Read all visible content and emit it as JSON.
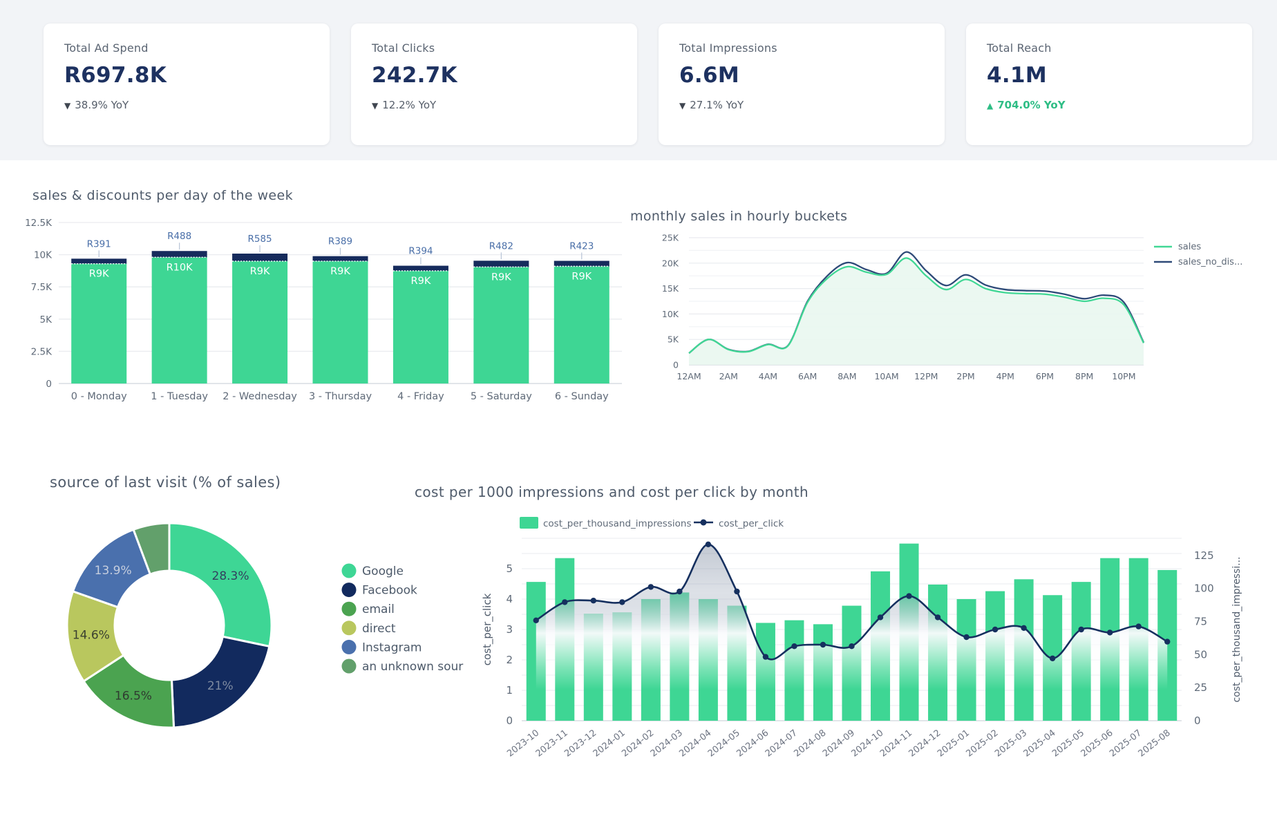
{
  "kpi_cards": [
    {
      "label": "Total Ad Spend",
      "value": "R697.8K",
      "delta": "38.9% YoY",
      "direction": "down"
    },
    {
      "label": "Total Clicks",
      "value": "242.7K",
      "delta": "12.2% YoY",
      "direction": "down"
    },
    {
      "label": "Total Impressions",
      "value": "6.6M",
      "delta": "27.1% YoY",
      "direction": "down"
    },
    {
      "label": "Total Reach",
      "value": "4.1M",
      "delta": "704.0% YoY",
      "direction": "up"
    }
  ],
  "colors": {
    "green": "#3ed694",
    "navy": "#162b5c",
    "line_navy": "#16305f",
    "slate_line": "#2e4a78",
    "accent_up": "#2ebd85",
    "tick_text": "#5f6a78",
    "title_text": "#4f5b6b",
    "grid": "#e9ebef",
    "axis": "#cfd5dc",
    "kpi_value": "#1d3160",
    "strip_bg": "#f2f4f7"
  },
  "chart_data": [
    {
      "type": "bar",
      "title": "sales & discounts per day of the week",
      "stacked": true,
      "categories": [
        "0 - Monday",
        "1 - Tuesday",
        "2 - Wednesday",
        "3 - Thursday",
        "4 - Friday",
        "5 - Saturday",
        "6 - Sunday"
      ],
      "series": [
        {
          "name": "sales",
          "color": "#3ed694",
          "values": [
            9300,
            9800,
            9500,
            9500,
            8750,
            9050,
            9100
          ],
          "labels": [
            "R9K",
            "R10K",
            "R9K",
            "R9K",
            "R9K",
            "R9K",
            "R9K"
          ]
        },
        {
          "name": "discounts",
          "color": "#162b5c",
          "values": [
            391,
            488,
            585,
            389,
            394,
            482,
            423
          ],
          "labels": [
            "R391",
            "R488",
            "R585",
            "R389",
            "R394",
            "R482",
            "R423"
          ]
        }
      ],
      "ylim": [
        0,
        12500
      ],
      "yticks": [
        {
          "v": 0,
          "t": "0"
        },
        {
          "v": 2500,
          "t": "2.5K"
        },
        {
          "v": 5000,
          "t": "5K"
        },
        {
          "v": 7500,
          "t": "7.5K"
        },
        {
          "v": 10000,
          "t": "10K"
        },
        {
          "v": 12500,
          "t": "12.5K"
        }
      ]
    },
    {
      "type": "area",
      "title": "monthly sales in hourly buckets",
      "x_hours": [
        "12AM",
        "1AM",
        "2AM",
        "3AM",
        "4AM",
        "5AM",
        "6AM",
        "7AM",
        "8AM",
        "9AM",
        "10AM",
        "11AM",
        "12PM",
        "1PM",
        "2PM",
        "3PM",
        "4PM",
        "5PM",
        "6PM",
        "7PM",
        "8PM",
        "9PM",
        "10PM",
        "11PM"
      ],
      "x_tick_labels": [
        "12AM",
        "2AM",
        "4AM",
        "6AM",
        "8AM",
        "10AM",
        "12PM",
        "2PM",
        "4PM",
        "6PM",
        "8PM",
        "10PM"
      ],
      "series": [
        {
          "name": "sales",
          "color": "#41d795",
          "fill": "#e9f7f0",
          "values_k": [
            2.3,
            5.0,
            3.0,
            2.6,
            4.0,
            3.7,
            12.3,
            17.0,
            19.3,
            18.2,
            17.8,
            21.0,
            17.5,
            14.8,
            16.8,
            15.0,
            14.2,
            14.0,
            13.9,
            13.3,
            12.5,
            13.1,
            11.8,
            4.3
          ]
        },
        {
          "name": "sales_no_dis...",
          "color": "#2e4a78",
          "values_k": [
            2.3,
            5.0,
            3.05,
            2.65,
            4.05,
            3.75,
            12.5,
            17.5,
            20.1,
            18.7,
            18.0,
            22.2,
            18.5,
            15.6,
            17.7,
            15.7,
            14.8,
            14.6,
            14.5,
            13.9,
            13.0,
            13.7,
            12.3,
            4.4
          ]
        }
      ],
      "ylim_k": [
        0,
        25
      ],
      "yticks": [
        {
          "v": 0,
          "t": "0"
        },
        {
          "v": 5,
          "t": "5K"
        },
        {
          "v": 10,
          "t": "10K"
        },
        {
          "v": 15,
          "t": "15K"
        },
        {
          "v": 20,
          "t": "20K"
        },
        {
          "v": 25,
          "t": "25K"
        }
      ],
      "legend_position": "right"
    },
    {
      "type": "pie",
      "title": "source of last visit (% of sales)",
      "donut": true,
      "slices": [
        {
          "label": "Google",
          "value": 28.3,
          "display": "28.3%",
          "color": "#3ed695",
          "label_color": "#33415e"
        },
        {
          "label": "Facebook",
          "value": 21.0,
          "display": "21%",
          "color": "#122a5e",
          "label_color": "#7e8aa0"
        },
        {
          "label": "email",
          "value": 16.5,
          "display": "16.5%",
          "color": "#4ba350",
          "label_color": "#2f3b30"
        },
        {
          "label": "direct",
          "value": 14.6,
          "display": "14.6%",
          "color": "#b9c75e",
          "label_color": "#3a4030"
        },
        {
          "label": "Instagram",
          "value": 13.9,
          "display": "13.9%",
          "color": "#4a70ad",
          "label_color": "#c6cede"
        },
        {
          "label": "an unknown sour",
          "value": 5.7,
          "display": "",
          "color": "#62a06b",
          "label_color": ""
        }
      ]
    },
    {
      "type": "bar+line",
      "title": "cost per 1000 impressions and cost per click by month",
      "categories": [
        "2023-10",
        "2023-11",
        "2023-12",
        "2024-01",
        "2024-02",
        "2024-03",
        "2024-04",
        "2024-05",
        "2024-06",
        "2024-07",
        "2024-08",
        "2024-09",
        "2024-10",
        "2024-11",
        "2024-12",
        "2025-01",
        "2025-02",
        "2025-03",
        "2025-04",
        "2025-05",
        "2025-06",
        "2025-07",
        "2025-08"
      ],
      "bars": {
        "name": "cost_per_thousand_impressions",
        "color": "#3ed694",
        "values": [
          105,
          123,
          81,
          82,
          92,
          97,
          92,
          87,
          74,
          76,
          73,
          87,
          113,
          134,
          103,
          92,
          98,
          107,
          95,
          105,
          123,
          123,
          114
        ]
      },
      "line": {
        "name": "cost_per_click",
        "color": "#16305f",
        "values": [
          3.3,
          3.9,
          3.95,
          3.9,
          4.4,
          4.25,
          5.8,
          4.25,
          2.1,
          2.45,
          2.5,
          2.45,
          3.4,
          4.1,
          3.4,
          2.75,
          3.0,
          3.05,
          2.05,
          3.0,
          2.9,
          3.1,
          2.6
        ]
      },
      "left_axis": {
        "label": "cost_per_click",
        "ticks": [
          0,
          1,
          2,
          3,
          4,
          5
        ],
        "lim": [
          0,
          6
        ]
      },
      "right_axis": {
        "label": "cost_per_thousand_impressi...",
        "ticks": [
          0,
          25,
          50,
          75,
          100,
          125
        ],
        "lim": [
          0,
          138
        ]
      }
    }
  ]
}
